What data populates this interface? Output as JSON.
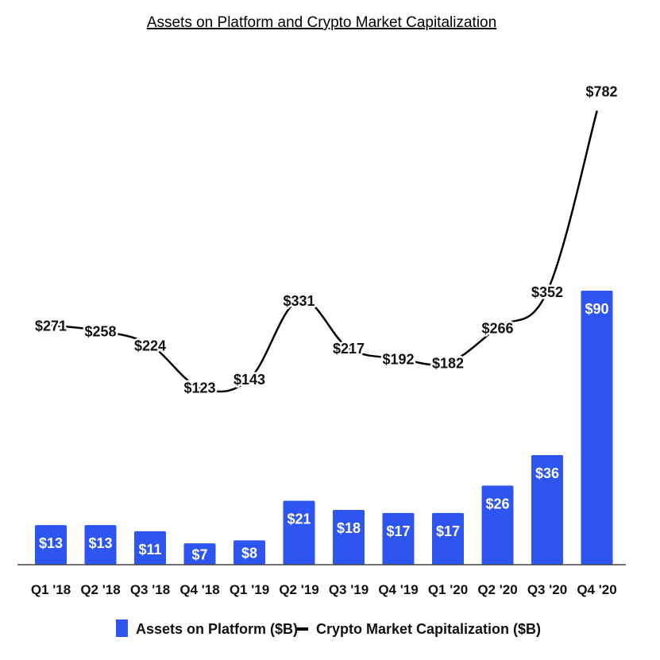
{
  "chart_data": {
    "type": "bar",
    "title": "Assets on Platform and Crypto Market Capitalization",
    "categories": [
      "Q1 '18",
      "Q2 '18",
      "Q3 '18",
      "Q4 '18",
      "Q1 '19",
      "Q2 '19",
      "Q3 '19",
      "Q4 '19",
      "Q1 '20",
      "Q2 '20",
      "Q3 '20",
      "Q4 '20"
    ],
    "series": [
      {
        "name": "Assets on Platform ($B)",
        "type": "bar",
        "color": "#2f55f0",
        "values": [
          13,
          13,
          11,
          7,
          8,
          21,
          18,
          17,
          17,
          26,
          36,
          90
        ],
        "labels": [
          "$13",
          "$13",
          "$11",
          "$7",
          "$8",
          "$21",
          "$18",
          "$17",
          "$17",
          "$26",
          "$36",
          "$90"
        ]
      },
      {
        "name": "Crypto Market Capitalization ($B)",
        "type": "line",
        "color": "#000000",
        "values": [
          271,
          258,
          224,
          123,
          143,
          331,
          217,
          192,
          182,
          266,
          352,
          782
        ],
        "labels": [
          "$271",
          "$258",
          "$224",
          "$123",
          "$143",
          "$331",
          "$217",
          "$192",
          "$182",
          "$266",
          "$352",
          "$782"
        ]
      }
    ],
    "legend": "bottom",
    "grid": false
  }
}
